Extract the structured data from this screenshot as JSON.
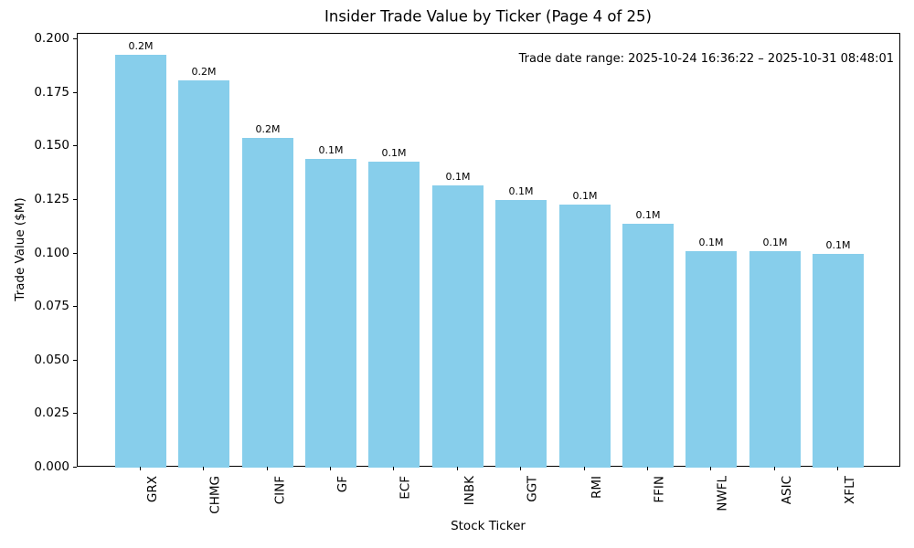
{
  "chart_data": {
    "type": "bar",
    "title": "Insider Trade Value by Ticker (Page 4 of 25)",
    "xlabel": "Stock Ticker",
    "ylabel": "Trade Value ($M)",
    "annotation": "Trade date range: 2025-10-24 16:36:22 – 2025-10-31 08:48:01",
    "categories": [
      "GRX",
      "CHMG",
      "CINF",
      "GF",
      "ECF",
      "INBK",
      "GGT",
      "RMI",
      "FFIN",
      "NWFL",
      "ASIC",
      "XFLT"
    ],
    "values": [
      0.193,
      0.181,
      0.154,
      0.144,
      0.143,
      0.132,
      0.125,
      0.123,
      0.114,
      0.101,
      0.101,
      0.1
    ],
    "bar_labels": [
      "0.2M",
      "0.2M",
      "0.2M",
      "0.1M",
      "0.1M",
      "0.1M",
      "0.1M",
      "0.1M",
      "0.1M",
      "0.1M",
      "0.1M",
      "0.1M"
    ],
    "ylim": [
      0,
      0.2
    ],
    "yticks": [
      0.0,
      0.025,
      0.05,
      0.075,
      0.1,
      0.125,
      0.15,
      0.175,
      0.2
    ],
    "ytick_labels": [
      "0.000",
      "0.025",
      "0.050",
      "0.075",
      "0.100",
      "0.125",
      "0.150",
      "0.175",
      "0.200"
    ],
    "bar_color": "#87CEEB",
    "grid": false,
    "legend": null
  }
}
